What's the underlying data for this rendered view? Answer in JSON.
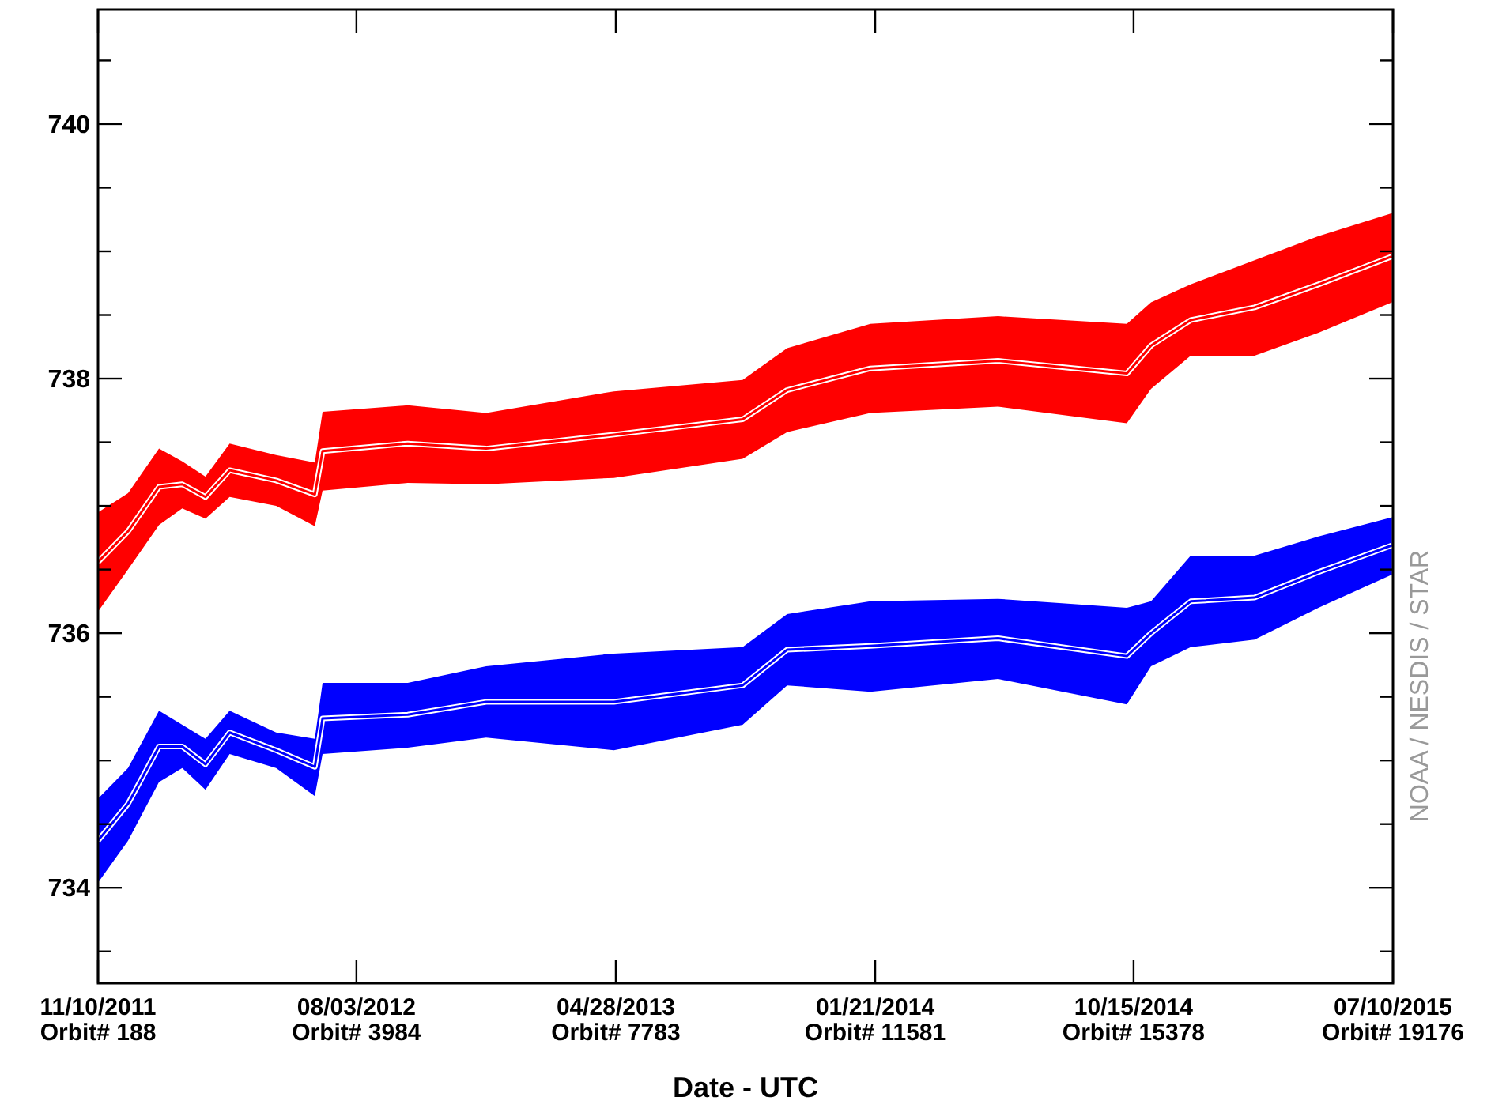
{
  "chart_data": {
    "type": "line",
    "xlabel": "Date - UTC",
    "x": [
      "2011-11-10",
      "2011-12-11",
      "2012-01-12",
      "2012-02-05",
      "2012-02-29",
      "2012-03-25",
      "2012-05-12",
      "2012-06-21",
      "2012-06-29",
      "2012-09-25",
      "2012-12-15",
      "2013-04-26",
      "2013-09-06",
      "2013-10-22",
      "2014-01-16",
      "2014-05-28",
      "2014-10-08",
      "2014-11-02",
      "2014-12-13",
      "2015-02-17",
      "2015-04-24",
      "2015-07-09"
    ],
    "series": [
      {
        "color": "#ff0000",
        "values": [
          736.56,
          736.8,
          737.15,
          737.17,
          737.07,
          737.28,
          737.2,
          737.09,
          737.43,
          737.49,
          737.45,
          737.56,
          737.68,
          737.91,
          738.08,
          738.14,
          738.04,
          738.26,
          738.46,
          738.56,
          738.74,
          738.96
        ],
        "lower": [
          736.17,
          736.5,
          736.85,
          736.98,
          736.9,
          737.07,
          737.0,
          736.84,
          737.12,
          737.18,
          737.17,
          737.22,
          737.37,
          737.58,
          737.73,
          737.78,
          737.65,
          737.92,
          738.18,
          738.18,
          738.36,
          738.6
        ],
        "upper": [
          736.95,
          737.1,
          737.45,
          737.35,
          737.23,
          737.49,
          737.4,
          737.34,
          737.74,
          737.79,
          737.73,
          737.9,
          737.99,
          738.24,
          738.43,
          738.49,
          738.43,
          738.6,
          738.74,
          738.93,
          739.12,
          739.3
        ]
      },
      {
        "color": "#0000ff",
        "values": [
          734.37,
          734.66,
          735.11,
          735.11,
          734.97,
          735.22,
          735.08,
          734.95,
          735.33,
          735.36,
          735.46,
          735.46,
          735.59,
          735.87,
          735.9,
          735.96,
          735.82,
          736.0,
          736.25,
          736.28,
          736.48,
          736.69
        ],
        "lower": [
          734.04,
          734.37,
          734.83,
          734.94,
          734.77,
          735.05,
          734.94,
          734.72,
          735.05,
          735.1,
          735.18,
          735.08,
          735.28,
          735.59,
          735.54,
          735.64,
          735.44,
          735.74,
          735.89,
          735.95,
          736.2,
          736.46
        ],
        "upper": [
          734.7,
          734.94,
          735.39,
          735.28,
          735.17,
          735.39,
          735.22,
          735.17,
          735.61,
          735.61,
          735.74,
          735.84,
          735.89,
          736.15,
          736.25,
          736.27,
          736.2,
          736.25,
          736.61,
          736.61,
          736.76,
          736.91
        ]
      }
    ],
    "xlim": [
      "2011-11-10",
      "2015-07-10"
    ],
    "xticks": [
      {
        "value": "2011-11-10",
        "label": "11/10/2011\nOrbit# 188"
      },
      {
        "value": "2012-08-03",
        "label": "08/03/2012\nOrbit# 3984"
      },
      {
        "value": "2013-04-28",
        "label": "04/28/2013\nOrbit# 7783"
      },
      {
        "value": "2014-01-21",
        "label": "01/21/2014\nOrbit# 11581"
      },
      {
        "value": "2014-10-15",
        "label": "10/15/2014\nOrbit# 15378"
      },
      {
        "value": "2015-07-10",
        "label": "07/10/2015\nOrbit# 19176"
      }
    ],
    "ylim": [
      733.25,
      740.9
    ],
    "yticks": [
      {
        "value": 733.5,
        "label": null
      },
      734,
      {
        "value": 734.5,
        "label": null
      },
      {
        "value": 735,
        "label": null
      },
      {
        "value": 735.5,
        "label": null
      },
      736,
      {
        "value": 736.5,
        "label": null
      },
      {
        "value": 737,
        "label": null
      },
      {
        "value": 737.5,
        "label": null
      },
      738,
      {
        "value": 738.5,
        "label": null
      },
      {
        "value": 739,
        "label": null
      },
      {
        "value": 739.5,
        "label": null
      },
      740,
      {
        "value": 740.5,
        "label": null
      }
    ],
    "annotations": [
      "NOAA / NESDIS / STAR"
    ],
    "grid": false,
    "marker": "none"
  }
}
